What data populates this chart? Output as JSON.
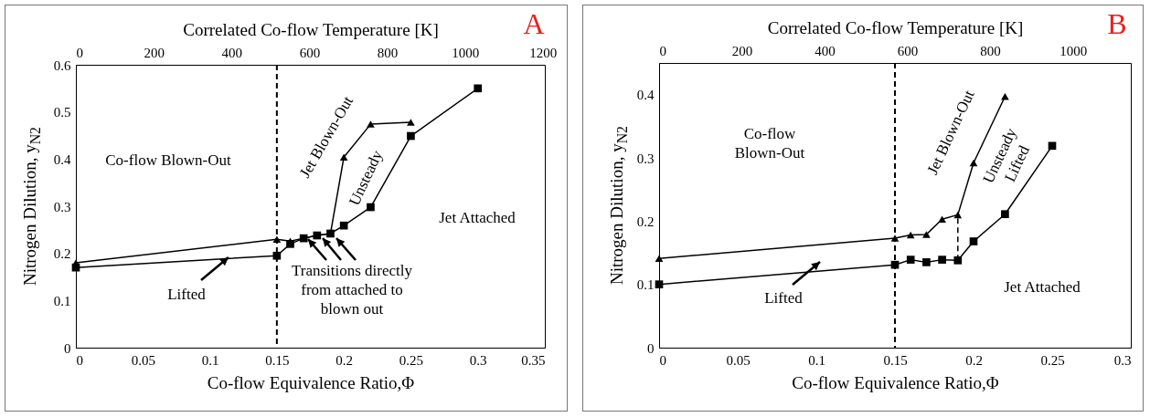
{
  "chart_data": [
    {
      "type": "line",
      "title": "A",
      "xlabel": "Co-flow Equivalence Ratio,Φ",
      "x2label": "Correlated Co-flow Temperature [K]",
      "ylabel": "Nitrogen Dilution, y$_{N2}$",
      "xlim": [
        0,
        0.35
      ],
      "xticks": [
        0,
        0.05,
        0.1,
        0.15,
        0.2,
        0.25,
        0.3,
        0.35
      ],
      "ylim": [
        0,
        0.6
      ],
      "yticks": [
        0,
        0.1,
        0.2,
        0.3,
        0.4,
        0.5,
        0.6
      ],
      "x2lim": [
        0,
        1205
      ],
      "x2ticks": [
        0,
        200,
        400,
        600,
        800,
        1000,
        1200
      ],
      "ref_lines": [
        {
          "axis": "x",
          "value": 0.15,
          "color": "#000000",
          "line_style": "dashed"
        }
      ],
      "series": [
        {
          "color": "#000000",
          "marker": "triangle",
          "x": [
            0,
            0.15,
            0.16,
            0.17,
            0.18,
            0.19,
            0.2,
            0.22,
            0.25
          ],
          "values": [
            0.18,
            0.23,
            0.226,
            0.232,
            0.238,
            0.242,
            0.404,
            0.474,
            0.478
          ]
        },
        {
          "color": "#000000",
          "marker": "square",
          "x": [
            0,
            0.15,
            0.16,
            0.17,
            0.18,
            0.19,
            0.2,
            0.22,
            0.25,
            0.3
          ],
          "values": [
            0.17,
            0.195,
            0.22,
            0.232,
            0.238,
            0.242,
            0.259,
            0.298,
            0.449,
            0.55
          ]
        }
      ],
      "annotations": [
        "Co-flow Blown-Out",
        "Jet Blown-Out",
        "Unsteady",
        "Jet Attached",
        "Lifted",
        "Transitions directly from attached to blown out"
      ]
    },
    {
      "type": "line",
      "title": "B",
      "xlabel": "Co-flow Equivalence Ratio,Φ",
      "x2label": "Correlated Co-flow Temperature [K]",
      "ylabel": "Nitrogen Dilution, y$_{N2}$",
      "xlim": [
        0,
        0.3
      ],
      "xticks": [
        0,
        0.05,
        0.1,
        0.15,
        0.2,
        0.25,
        0.3
      ],
      "ylim": [
        0,
        0.45
      ],
      "yticks": [
        0,
        0.1,
        0.2,
        0.3,
        0.4
      ],
      "x2lim": [
        0,
        1140
      ],
      "x2ticks": [
        0,
        200,
        400,
        600,
        800,
        1000
      ],
      "ref_lines": [
        {
          "axis": "x",
          "value": 0.15,
          "color": "#000000",
          "line_style": "dashed"
        }
      ],
      "series": [
        {
          "color": "#000000",
          "marker": "triangle",
          "x": [
            0,
            0.15,
            0.16,
            0.17,
            0.18,
            0.19,
            0.2,
            0.22
          ],
          "values": [
            0.141,
            0.173,
            0.178,
            0.179,
            0.203,
            0.21,
            0.292,
            0.397
          ]
        },
        {
          "color": "#000000",
          "marker": "square",
          "x": [
            0,
            0.15,
            0.16,
            0.17,
            0.18,
            0.19,
            0.2,
            0.22,
            0.25
          ],
          "values": [
            0.1,
            0.131,
            0.139,
            0.135,
            0.139,
            0.138,
            0.168,
            0.211,
            0.319
          ]
        },
        {
          "color": "#000000",
          "marker": "none",
          "line_style": "dashed",
          "x": [
            0.19,
            0.19
          ],
          "values": [
            0.138,
            0.21
          ]
        }
      ],
      "annotations": [
        "Co-flow Blown-Out",
        "Jet Blown-Out",
        "Unsteady Lifted",
        "Jet Attached",
        "Lifted"
      ]
    }
  ]
}
